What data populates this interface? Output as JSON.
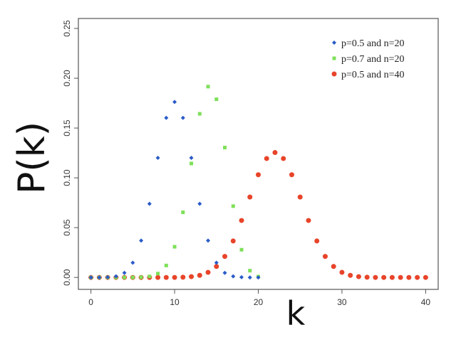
{
  "chart_data": {
    "type": "scatter",
    "title": "",
    "xlabel": "k",
    "ylabel": "P(k)",
    "xlim": [
      -1.5,
      41.5
    ],
    "ylim": [
      -0.012,
      0.26
    ],
    "xticks": [
      0,
      10,
      20,
      30,
      40
    ],
    "yticks": [
      0.0,
      0.05,
      0.1,
      0.15,
      0.2,
      0.25
    ],
    "ytick_labels": [
      "0.00",
      "0.05",
      "0.10",
      "0.15",
      "0.20",
      "0.25"
    ],
    "grid": false,
    "legend": "top-right",
    "series": [
      {
        "name": "p=0.5 and n=20",
        "marker": "diamond",
        "color": "#2a5cc8",
        "x": [
          0,
          1,
          2,
          3,
          4,
          5,
          6,
          7,
          8,
          9,
          10,
          11,
          12,
          13,
          14,
          15,
          16,
          17,
          18,
          19,
          20
        ],
        "y": [
          0.0,
          0.0,
          0.0002,
          0.0011,
          0.0046,
          0.0148,
          0.037,
          0.0739,
          0.1201,
          0.1602,
          0.1762,
          0.1602,
          0.1201,
          0.0739,
          0.037,
          0.0148,
          0.0046,
          0.0011,
          0.0002,
          0.0,
          0.0
        ]
      },
      {
        "name": "p=0.7 and n=20",
        "marker": "square",
        "color": "#7ee05a",
        "x": [
          0,
          1,
          2,
          3,
          4,
          5,
          6,
          7,
          8,
          9,
          10,
          11,
          12,
          13,
          14,
          15,
          16,
          17,
          18,
          19,
          20
        ],
        "y": [
          0.0,
          0.0,
          0.0,
          0.0,
          0.0,
          0.0,
          0.0002,
          0.001,
          0.0039,
          0.012,
          0.0308,
          0.0654,
          0.1144,
          0.1643,
          0.1916,
          0.1789,
          0.1304,
          0.0716,
          0.0278,
          0.0068,
          0.0008
        ]
      },
      {
        "name": "p=0.5 and n=40",
        "marker": "circle",
        "color": "#e8442a",
        "x": [
          0,
          1,
          2,
          3,
          4,
          5,
          6,
          7,
          8,
          9,
          10,
          11,
          12,
          13,
          14,
          15,
          16,
          17,
          18,
          19,
          20,
          21,
          22,
          23,
          24,
          25,
          26,
          27,
          28,
          29,
          30,
          31,
          32,
          33,
          34,
          35,
          36,
          37,
          38,
          39,
          40
        ],
        "y": [
          0.0,
          0.0,
          0.0,
          0.0,
          0.0,
          0.0,
          0.0,
          0.0,
          0.0,
          0.0,
          0.0,
          0.0002,
          0.0008,
          0.0021,
          0.0051,
          0.011,
          0.0211,
          0.0366,
          0.0572,
          0.0807,
          0.1031,
          0.1194,
          0.1254,
          0.1194,
          0.1031,
          0.0807,
          0.0572,
          0.0366,
          0.0211,
          0.011,
          0.0051,
          0.0021,
          0.0008,
          0.0002,
          0.0,
          0.0,
          0.0,
          0.0,
          0.0,
          0.0,
          0.0
        ]
      }
    ]
  }
}
